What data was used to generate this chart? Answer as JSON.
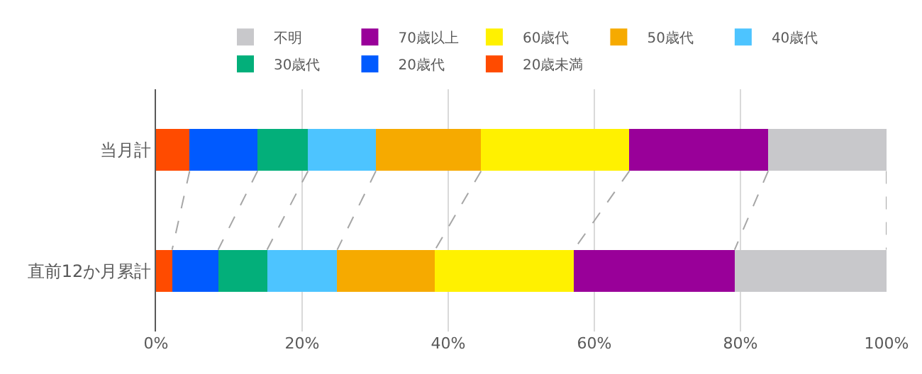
{
  "chart_data": {
    "type": "bar",
    "orientation": "horizontal",
    "stacked": true,
    "categories": [
      "当月計",
      "直前12か月累計"
    ],
    "series": [
      {
        "name": "20歳未満",
        "color": "#ff4b00",
        "values": [
          4.6,
          2.2
        ]
      },
      {
        "name": "20歳代",
        "color": "#005aff",
        "values": [
          9.3,
          6.3
        ]
      },
      {
        "name": "30歳代",
        "color": "#03af7a",
        "values": [
          6.9,
          6.7
        ]
      },
      {
        "name": "40歳代",
        "color": "#4dc4ff",
        "values": [
          9.3,
          9.6
        ]
      },
      {
        "name": "50歳代",
        "color": "#f6aa00",
        "values": [
          14.4,
          13.4
        ]
      },
      {
        "name": "60歳代",
        "color": "#fff100",
        "values": [
          20.3,
          19.0
        ]
      },
      {
        "name": "70歳以上",
        "color": "#990099",
        "values": [
          19.0,
          22.0
        ]
      },
      {
        "name": "不明",
        "color": "#c8c8cb",
        "values": [
          16.2,
          20.8
        ]
      }
    ],
    "xlim": [
      0,
      100
    ],
    "xticks": [
      {
        "value": 0,
        "label": "0%"
      },
      {
        "value": 20,
        "label": "20%"
      },
      {
        "value": 40,
        "label": "40%"
      },
      {
        "value": 60,
        "label": "60%"
      },
      {
        "value": 80,
        "label": "80%"
      },
      {
        "value": 100,
        "label": "100%"
      }
    ],
    "grid": "x",
    "legend": "top"
  }
}
